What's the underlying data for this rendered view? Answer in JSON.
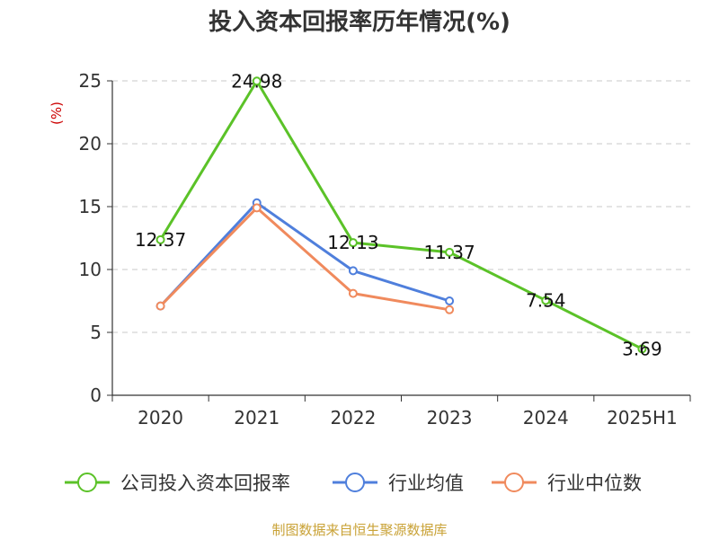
{
  "chart_data": {
    "type": "line",
    "title": "投入资本回报率历年情况(%)",
    "ylabel": "(%)",
    "xlabel": "",
    "categories": [
      "2020",
      "2021",
      "2022",
      "2023",
      "2024",
      "2025H1"
    ],
    "ylim": [
      0,
      25
    ],
    "yticks": [
      0,
      5,
      10,
      15,
      20,
      25
    ],
    "grid": true,
    "legend_position": "bottom",
    "series": [
      {
        "name": "公司投入资本回报率",
        "color": "#5bc228",
        "values": [
          12.37,
          24.98,
          12.13,
          11.37,
          7.54,
          3.69
        ],
        "labels": [
          "12.37",
          "24.98",
          "12.13",
          "11.37",
          "7.54",
          "3.69"
        ]
      },
      {
        "name": "行业均值",
        "color": "#4f7fdc",
        "values": [
          7.1,
          15.3,
          9.9,
          7.5,
          null,
          null
        ]
      },
      {
        "name": "行业中位数",
        "color": "#f08a5d",
        "values": [
          7.1,
          14.9,
          8.1,
          6.8,
          null,
          null
        ]
      }
    ]
  },
  "footer": {
    "source": "制图数据来自恒生聚源数据库"
  }
}
